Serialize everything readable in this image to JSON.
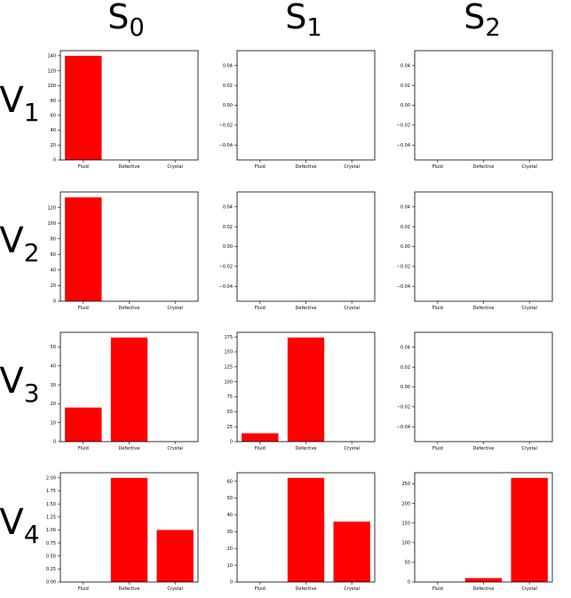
{
  "headers": {
    "columns": [
      {
        "base": "S",
        "sub": "0"
      },
      {
        "base": "S",
        "sub": "1"
      },
      {
        "base": "S",
        "sub": "2"
      }
    ],
    "rows": [
      {
        "base": "V",
        "sub": "1"
      },
      {
        "base": "V",
        "sub": "2"
      },
      {
        "base": "V",
        "sub": "3"
      },
      {
        "base": "V",
        "sub": "4"
      }
    ]
  },
  "colors": {
    "bar": "#ff0000",
    "axis": "#000000"
  },
  "chart_data": [
    {
      "type": "bar",
      "row": 0,
      "col": 0,
      "categories": [
        "Fluid",
        "Defective",
        "Crystal"
      ],
      "values": [
        140,
        0,
        0
      ],
      "ylim": [
        0,
        147
      ],
      "yticks": [
        0,
        20,
        40,
        60,
        80,
        100,
        120,
        140
      ],
      "ytick_labels": [
        "0",
        "20",
        "40",
        "60",
        "80",
        "100",
        "120",
        "140"
      ]
    },
    {
      "type": "bar",
      "row": 0,
      "col": 1,
      "categories": [
        "Fluid",
        "Defective",
        "Crystal"
      ],
      "values": [
        0,
        0,
        0
      ],
      "ylim": [
        -0.055,
        0.055
      ],
      "yticks": [
        -0.04,
        -0.02,
        0,
        0.02,
        0.04
      ],
      "ytick_labels": [
        "−0.04",
        "−0.02",
        "0.00",
        "0.02",
        "0.04"
      ]
    },
    {
      "type": "bar",
      "row": 0,
      "col": 2,
      "categories": [
        "Fluid",
        "Defective",
        "Crystal"
      ],
      "values": [
        0,
        0,
        0
      ],
      "ylim": [
        -0.055,
        0.055
      ],
      "yticks": [
        -0.04,
        -0.02,
        0,
        0.02,
        0.04
      ],
      "ytick_labels": [
        "−0.04",
        "−0.02",
        "0.00",
        "0.02",
        "0.04"
      ]
    },
    {
      "type": "bar",
      "row": 1,
      "col": 0,
      "categories": [
        "Fluid",
        "Defective",
        "Crystal"
      ],
      "values": [
        133,
        0,
        0
      ],
      "ylim": [
        0,
        140
      ],
      "yticks": [
        0,
        20,
        40,
        60,
        80,
        100,
        120
      ],
      "ytick_labels": [
        "0",
        "20",
        "40",
        "60",
        "80",
        "100",
        "120"
      ]
    },
    {
      "type": "bar",
      "row": 1,
      "col": 1,
      "categories": [
        "Fluid",
        "Defective",
        "Crystal"
      ],
      "values": [
        0,
        0,
        0
      ],
      "ylim": [
        -0.055,
        0.055
      ],
      "yticks": [
        -0.04,
        -0.02,
        0,
        0.02,
        0.04
      ],
      "ytick_labels": [
        "−0.04",
        "−0.02",
        "0.00",
        "0.02",
        "0.04"
      ]
    },
    {
      "type": "bar",
      "row": 1,
      "col": 2,
      "categories": [
        "Fluid",
        "Defective",
        "Crystal"
      ],
      "values": [
        0,
        0,
        0
      ],
      "ylim": [
        -0.055,
        0.055
      ],
      "yticks": [
        -0.04,
        -0.02,
        0,
        0.02,
        0.04
      ],
      "ytick_labels": [
        "−0.04",
        "−0.02",
        "0.00",
        "0.02",
        "0.04"
      ]
    },
    {
      "type": "bar",
      "row": 2,
      "col": 0,
      "categories": [
        "Fluid",
        "Defective",
        "Crystal"
      ],
      "values": [
        18,
        55,
        0
      ],
      "ylim": [
        0,
        57.75
      ],
      "yticks": [
        0,
        10,
        20,
        30,
        40,
        50
      ],
      "ytick_labels": [
        "0",
        "10",
        "20",
        "30",
        "40",
        "50"
      ]
    },
    {
      "type": "bar",
      "row": 2,
      "col": 1,
      "categories": [
        "Fluid",
        "Defective",
        "Crystal"
      ],
      "values": [
        14,
        174,
        0
      ],
      "ylim": [
        0,
        182.7
      ],
      "yticks": [
        0,
        25,
        50,
        75,
        100,
        125,
        150,
        175
      ],
      "ytick_labels": [
        "0",
        "25",
        "50",
        "75",
        "100",
        "125",
        "150",
        "175"
      ]
    },
    {
      "type": "bar",
      "row": 2,
      "col": 2,
      "categories": [
        "Fluid",
        "Defective",
        "Crystal"
      ],
      "values": [
        0,
        0,
        0
      ],
      "ylim": [
        -0.055,
        0.055
      ],
      "yticks": [
        -0.04,
        -0.02,
        0,
        0.02,
        0.04
      ],
      "ytick_labels": [
        "−0.04",
        "−0.02",
        "0.00",
        "0.02",
        "0.04"
      ]
    },
    {
      "type": "bar",
      "row": 3,
      "col": 0,
      "categories": [
        "Fluid",
        "Defective",
        "Crystal"
      ],
      "values": [
        0,
        2,
        1
      ],
      "ylim": [
        0,
        2.1
      ],
      "yticks": [
        0,
        0.25,
        0.5,
        0.75,
        1.0,
        1.25,
        1.5,
        1.75,
        2.0
      ],
      "ytick_labels": [
        "0.00",
        "0.25",
        "0.50",
        "0.75",
        "1.00",
        "1.25",
        "1.50",
        "1.75",
        "2.00"
      ]
    },
    {
      "type": "bar",
      "row": 3,
      "col": 1,
      "categories": [
        "Fluid",
        "Defective",
        "Crystal"
      ],
      "values": [
        0,
        62,
        36
      ],
      "ylim": [
        0,
        65.1
      ],
      "yticks": [
        0,
        10,
        20,
        30,
        40,
        50,
        60
      ],
      "ytick_labels": [
        "0",
        "10",
        "20",
        "30",
        "40",
        "50",
        "60"
      ]
    },
    {
      "type": "bar",
      "row": 3,
      "col": 2,
      "categories": [
        "Fluid",
        "Defective",
        "Crystal"
      ],
      "values": [
        0,
        10,
        265
      ],
      "ylim": [
        0,
        278.25
      ],
      "yticks": [
        0,
        50,
        100,
        150,
        200,
        250
      ],
      "ytick_labels": [
        "0",
        "50",
        "100",
        "150",
        "200",
        "250"
      ]
    }
  ]
}
